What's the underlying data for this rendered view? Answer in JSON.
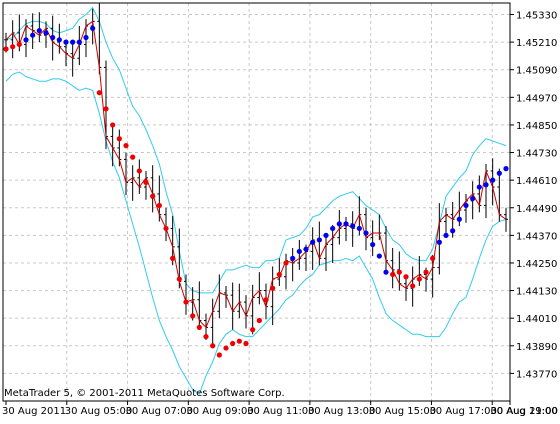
{
  "chart_data": {
    "type": "line",
    "overlay": "OHLC bars with bands and dot indicator",
    "footer_text": "MetaTrader 5, © 2001-2011 MetaQuotes Software Corp.",
    "title": "",
    "xlabel": "",
    "ylabel": "",
    "ylim": [
      1.4365,
      1.4538
    ],
    "y_ticks": [
      "1.45330",
      "1.45210",
      "1.45090",
      "1.44970",
      "1.44850",
      "1.44730",
      "1.44610",
      "1.44490",
      "1.44370",
      "1.44250",
      "1.44130",
      "1.44010",
      "1.43890",
      "1.43770"
    ],
    "x_ticks": [
      "30 Aug 2011",
      "30 Aug 05:00",
      "30 Aug 07:00",
      "30 Aug 09:00",
      "30 Aug 11:00",
      "30 Aug 13:00",
      "30 Aug 15:00",
      "30 Aug 17:00",
      "30 Aug 19:00",
      "30 Aug 21:00"
    ],
    "grid": true,
    "colors": {
      "price_line": "#cc0000",
      "bars": "#000000",
      "bands": "#33ccee",
      "dots_up": "#0000ee",
      "dots_down": "#ee0000",
      "grid": "#c8c8c8",
      "axis": "#000000"
    },
    "series": [
      {
        "values": [
          1.4522,
          1.4525,
          1.452,
          1.4528,
          1.4526,
          1.4524,
          1.4527,
          1.4521,
          1.4519,
          1.4516,
          1.4514,
          1.452,
          1.4528,
          1.453,
          1.451,
          1.448,
          1.4475,
          1.447,
          1.446,
          1.4462,
          1.4458,
          1.4462,
          1.4455,
          1.4446,
          1.444,
          1.4432,
          1.4417,
          1.4408,
          1.4409,
          1.44,
          1.4397,
          1.4404,
          1.4412,
          1.4411,
          1.4404,
          1.4408,
          1.4402,
          1.441,
          1.4413,
          1.4406,
          1.4418,
          1.4419,
          1.4426,
          1.4425,
          1.4427,
          1.443,
          1.4435,
          1.4427,
          1.4433,
          1.4436,
          1.444,
          1.4442,
          1.444,
          1.4446,
          1.4436,
          1.4438,
          1.4438,
          1.4426,
          1.4422,
          1.4416,
          1.4414,
          1.4418,
          1.442,
          1.4418,
          1.4423,
          1.4443,
          1.4446,
          1.4444,
          1.4448,
          1.4452,
          1.4455,
          1.445,
          1.4465,
          1.4458,
          1.4446,
          1.4444
        ]
      }
    ],
    "bands": {
      "upper": [
        1.4522,
        1.4523,
        1.4526,
        1.4529,
        1.453,
        1.453,
        1.4529,
        1.4526,
        1.4525,
        1.4526,
        1.4527,
        1.4531,
        1.4533,
        1.4536,
        1.453,
        1.4521,
        1.4514,
        1.4509,
        1.4501,
        1.4493,
        1.4489,
        1.4483,
        1.4476,
        1.4468,
        1.4456,
        1.4446,
        1.443,
        1.4416,
        1.4413,
        1.4412,
        1.4412,
        1.4412,
        1.4417,
        1.4422,
        1.4422,
        1.4423,
        1.4424,
        1.4423,
        1.4423,
        1.4426,
        1.4426,
        1.4427,
        1.4435,
        1.4436,
        1.4437,
        1.444,
        1.4445,
        1.4446,
        1.4449,
        1.4452,
        1.4454,
        1.4455,
        1.4456,
        1.4453,
        1.445,
        1.4448,
        1.4446,
        1.444,
        1.4435,
        1.4433,
        1.4429,
        1.4427,
        1.4426,
        1.4426,
        1.4431,
        1.4442,
        1.4454,
        1.4458,
        1.4462,
        1.4465,
        1.4472,
        1.4476,
        1.4479,
        1.4478,
        1.4477,
        1.4476
      ],
      "lower": [
        1.4504,
        1.4507,
        1.4508,
        1.4506,
        1.4505,
        1.4504,
        1.4504,
        1.4505,
        1.4505,
        1.4504,
        1.4502,
        1.45,
        1.4501,
        1.45,
        1.449,
        1.4478,
        1.4469,
        1.4462,
        1.4452,
        1.4442,
        1.4432,
        1.4421,
        1.441,
        1.44,
        1.4393,
        1.4387,
        1.438,
        1.4375,
        1.437,
        1.4368,
        1.4376,
        1.4382,
        1.439,
        1.4394,
        1.4396,
        1.4394,
        1.4393,
        1.4393,
        1.4396,
        1.4399,
        1.4402,
        1.4405,
        1.4409,
        1.4411,
        1.4415,
        1.4418,
        1.442,
        1.4424,
        1.4425,
        1.4426,
        1.4426,
        1.4427,
        1.4426,
        1.4428,
        1.4423,
        1.4418,
        1.441,
        1.4403,
        1.44,
        1.4398,
        1.4396,
        1.4394,
        1.4394,
        1.4393,
        1.4393,
        1.4393,
        1.4397,
        1.4403,
        1.4408,
        1.441,
        1.4418,
        1.4427,
        1.4435,
        1.4441,
        1.4443,
        1.4444
      ]
    },
    "dots": {
      "values": [
        1.4518,
        1.4519,
        1.452,
        1.4522,
        1.4524,
        1.4526,
        1.4525,
        1.4523,
        1.4522,
        1.4521,
        1.4521,
        1.4521,
        1.4523,
        1.4527,
        1.4499,
        1.4492,
        1.4485,
        1.4479,
        1.4476,
        1.4471,
        1.4465,
        1.446,
        1.4454,
        1.445,
        1.444,
        1.4427,
        1.4418,
        1.4408,
        1.4402,
        1.4397,
        1.4393,
        1.4389,
        1.4385,
        1.4388,
        1.439,
        1.4391,
        1.439,
        1.4396,
        1.44,
        1.4409,
        1.4414,
        1.442,
        1.4425,
        1.4427,
        1.443,
        1.4431,
        1.4434,
        1.4435,
        1.4437,
        1.444,
        1.4442,
        1.4442,
        1.4441,
        1.444,
        1.4438,
        1.4433,
        1.4428,
        1.4421,
        1.442,
        1.4421,
        1.4419,
        1.4415,
        1.4418,
        1.4421,
        1.4427,
        1.4434,
        1.4437,
        1.4439,
        1.4444,
        1.445,
        1.4453,
        1.4458,
        1.4459,
        1.4461,
        1.4464,
        1.4466
      ],
      "trend": [
        "down",
        "down",
        "down",
        "up",
        "up",
        "up",
        "up",
        "up",
        "up",
        "up",
        "up",
        "up",
        "up",
        "up",
        "down",
        "down",
        "down",
        "down",
        "down",
        "down",
        "down",
        "down",
        "down",
        "down",
        "down",
        "down",
        "down",
        "down",
        "down",
        "down",
        "down",
        "down",
        "down",
        "down",
        "down",
        "down",
        "down",
        "down",
        "down",
        "down",
        "down",
        "down",
        "down",
        "up",
        "up",
        "up",
        "up",
        "up",
        "up",
        "up",
        "up",
        "up",
        "up",
        "up",
        "up",
        "up",
        "up",
        "up",
        "down",
        "down",
        "down",
        "down",
        "down",
        "down",
        "down",
        "up",
        "up",
        "up",
        "up",
        "up",
        "up",
        "up",
        "up",
        "up",
        "up",
        "up"
      ]
    }
  }
}
